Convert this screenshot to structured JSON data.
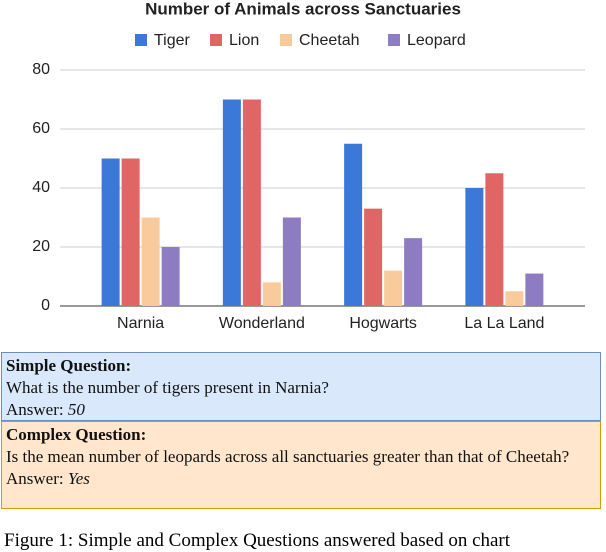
{
  "chart_data": {
    "type": "bar",
    "title": "Number of Animals across Sanctuaries",
    "categories": [
      "Narnia",
      "Wonderland",
      "Hogwarts",
      "La La Land"
    ],
    "series": [
      {
        "name": "Tiger",
        "color": "#3c78d8",
        "values": [
          50,
          70,
          55,
          40
        ]
      },
      {
        "name": "Lion",
        "color": "#e06666",
        "values": [
          50,
          70,
          33,
          45
        ]
      },
      {
        "name": "Cheetah",
        "color": "#f9cb9c",
        "values": [
          30,
          8,
          12,
          5
        ]
      },
      {
        "name": "Leopard",
        "color": "#8e7cc3",
        "values": [
          20,
          30,
          23,
          11
        ]
      }
    ],
    "ylim": [
      0,
      80
    ],
    "yticks": [
      0,
      20,
      40,
      60,
      80
    ],
    "grid": true,
    "legend": "top"
  },
  "simple": {
    "title": "Simple Question:",
    "question": "What is the number of tigers present in Narnia?",
    "answer_label": "Answer:",
    "answer": "50"
  },
  "complex": {
    "title": "Complex Question:",
    "question": "Is the mean number of leopards across all sanctuaries greater than that of Cheetah?",
    "answer_label": "Answer:",
    "answer": "Yes"
  },
  "caption": "Figure 1: Simple and Complex Questions answered based on chart"
}
